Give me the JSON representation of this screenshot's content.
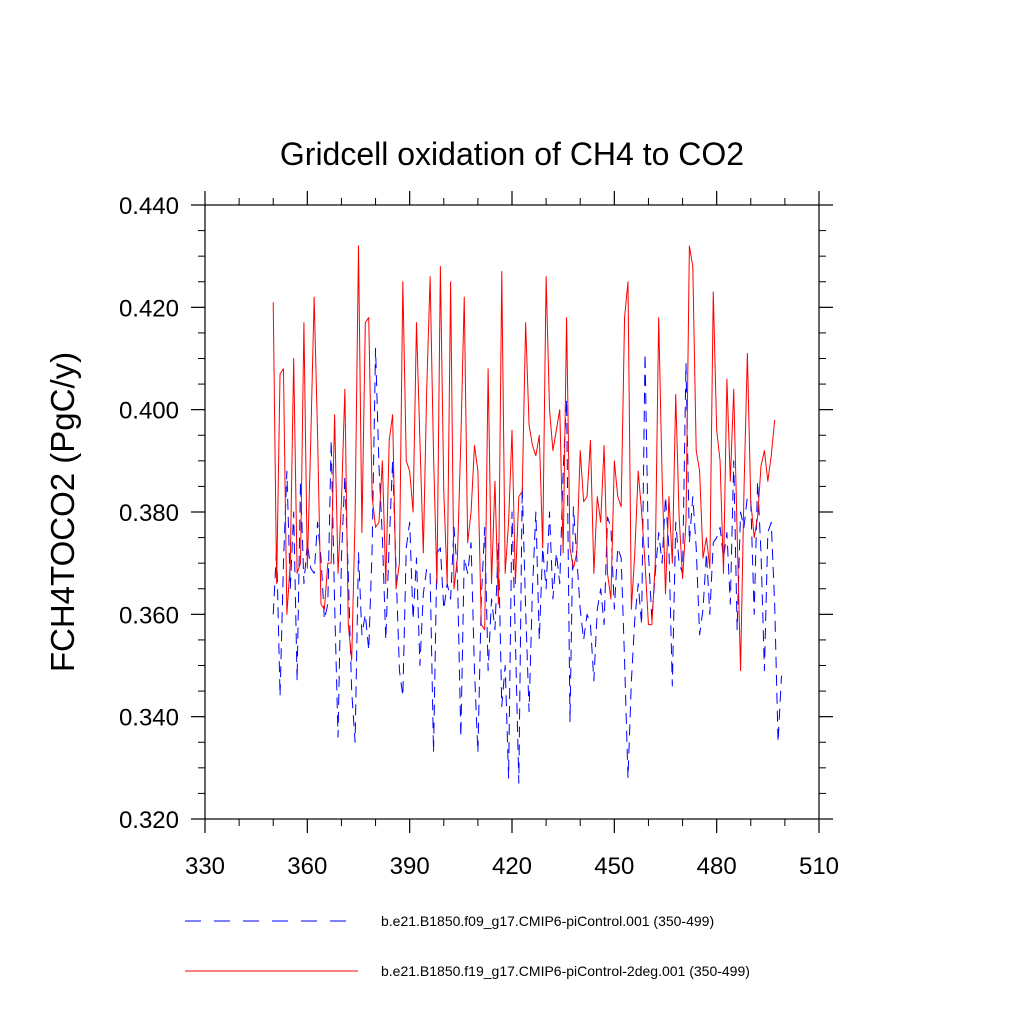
{
  "chart_data": {
    "type": "line",
    "title": "Gridcell oxidation of CH4 to CO2",
    "xlabel": "",
    "ylabel": "FCH4TOCO2  (PgC/y)",
    "xlim": [
      330,
      510
    ],
    "ylim": [
      0.32,
      0.44
    ],
    "xticks": [
      330,
      360,
      390,
      420,
      450,
      480,
      510
    ],
    "xtick_labels": [
      "330",
      "360",
      "390",
      "420",
      "450",
      "480",
      "510"
    ],
    "yticks": [
      0.32,
      0.34,
      0.36,
      0.38,
      0.4,
      0.42,
      0.44
    ],
    "ytick_labels": [
      "0.320",
      "0.340",
      "0.360",
      "0.380",
      "0.400",
      "0.420",
      "0.440"
    ],
    "legend_position": "bottom",
    "series": [
      {
        "name": "b.e21.B1850.f09_g17.CMIP6-piControl.001 (350-499)",
        "color": "#0000ff",
        "dash": "dashed",
        "x_start": 350,
        "x_step": 1,
        "values": [
          0.36,
          0.373,
          0.344,
          0.37,
          0.388,
          0.365,
          0.38,
          0.347,
          0.386,
          0.366,
          0.374,
          0.369,
          0.368,
          0.378,
          0.371,
          0.359,
          0.362,
          0.394,
          0.362,
          0.336,
          0.371,
          0.387,
          0.368,
          0.345,
          0.335,
          0.372,
          0.356,
          0.36,
          0.353,
          0.373,
          0.412,
          0.389,
          0.375,
          0.355,
          0.374,
          0.39,
          0.369,
          0.349,
          0.344,
          0.373,
          0.378,
          0.359,
          0.371,
          0.35,
          0.364,
          0.369,
          0.368,
          0.333,
          0.372,
          0.373,
          0.361,
          0.366,
          0.363,
          0.377,
          0.368,
          0.336,
          0.371,
          0.368,
          0.374,
          0.349,
          0.333,
          0.363,
          0.377,
          0.349,
          0.363,
          0.357,
          0.374,
          0.342,
          0.35,
          0.328,
          0.38,
          0.355,
          0.327,
          0.385,
          0.361,
          0.341,
          0.365,
          0.38,
          0.355,
          0.373,
          0.365,
          0.38,
          0.363,
          0.372,
          0.366,
          0.388,
          0.402,
          0.339,
          0.381,
          0.371,
          0.361,
          0.355,
          0.36,
          0.358,
          0.347,
          0.361,
          0.365,
          0.358,
          0.379,
          0.377,
          0.361,
          0.373,
          0.371,
          0.351,
          0.328,
          0.347,
          0.359,
          0.366,
          0.358,
          0.411,
          0.372,
          0.359,
          0.368,
          0.376,
          0.37,
          0.383,
          0.373,
          0.346,
          0.378,
          0.37,
          0.368,
          0.409,
          0.374,
          0.383,
          0.373,
          0.356,
          0.361,
          0.372,
          0.36,
          0.374,
          0.375,
          0.377,
          0.371,
          0.376,
          0.362,
          0.39,
          0.357,
          0.38,
          0.377,
          0.383,
          0.382,
          0.36,
          0.386,
          0.372,
          0.349,
          0.376,
          0.378,
          0.362,
          0.335,
          0.348
        ]
      },
      {
        "name": "b.e21.B1850.f19_g17.CMIP6-piControl-2deg.001 (350-499)",
        "color": "#ff0000",
        "dash": "solid",
        "x_start": 350,
        "x_step": 1,
        "values": [
          0.421,
          0.366,
          0.407,
          0.408,
          0.36,
          0.37,
          0.41,
          0.368,
          0.37,
          0.417,
          0.369,
          0.394,
          0.422,
          0.395,
          0.362,
          0.361,
          0.37,
          0.37,
          0.399,
          0.368,
          0.382,
          0.404,
          0.358,
          0.351,
          0.379,
          0.432,
          0.376,
          0.417,
          0.418,
          0.383,
          0.377,
          0.378,
          0.39,
          0.366,
          0.394,
          0.399,
          0.365,
          0.37,
          0.425,
          0.39,
          0.388,
          0.38,
          0.417,
          0.394,
          0.372,
          0.404,
          0.426,
          0.391,
          0.366,
          0.428,
          0.384,
          0.366,
          0.425,
          0.365,
          0.371,
          0.394,
          0.422,
          0.374,
          0.38,
          0.393,
          0.388,
          0.358,
          0.357,
          0.408,
          0.366,
          0.386,
          0.362,
          0.427,
          0.368,
          0.378,
          0.396,
          0.366,
          0.383,
          0.384,
          0.417,
          0.397,
          0.393,
          0.391,
          0.395,
          0.373,
          0.426,
          0.4,
          0.392,
          0.396,
          0.4,
          0.372,
          0.418,
          0.373,
          0.369,
          0.372,
          0.392,
          0.382,
          0.383,
          0.394,
          0.368,
          0.383,
          0.378,
          0.393,
          0.368,
          0.363,
          0.39,
          0.383,
          0.381,
          0.418,
          0.425,
          0.361,
          0.372,
          0.388,
          0.38,
          0.37,
          0.358,
          0.358,
          0.37,
          0.418,
          0.387,
          0.364,
          0.383,
          0.37,
          0.403,
          0.379,
          0.367,
          0.378,
          0.432,
          0.428,
          0.392,
          0.388,
          0.371,
          0.375,
          0.369,
          0.423,
          0.396,
          0.39,
          0.368,
          0.406,
          0.386,
          0.404,
          0.376,
          0.349,
          0.384,
          0.411,
          0.382,
          0.375,
          0.379,
          0.389,
          0.392,
          0.386,
          0.391,
          0.398
        ]
      }
    ]
  }
}
